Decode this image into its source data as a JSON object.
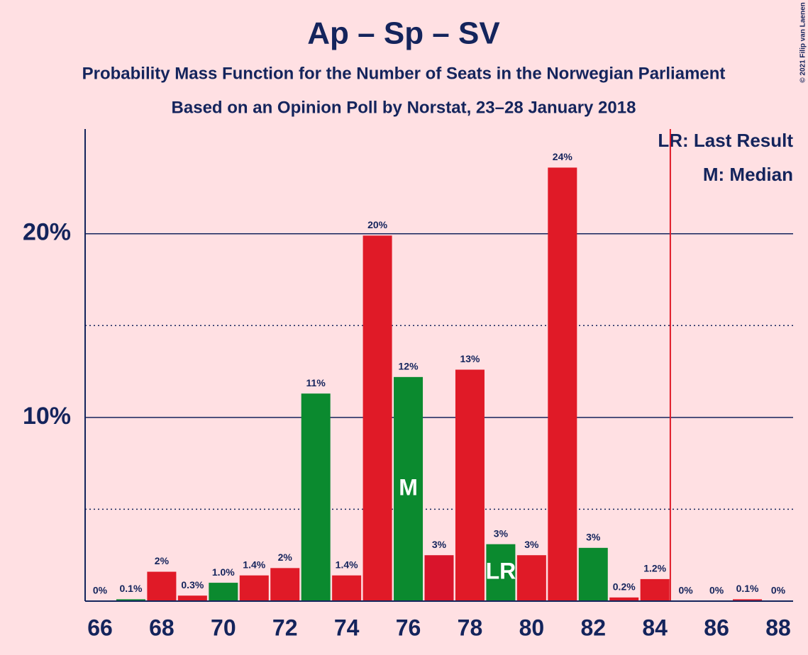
{
  "chart_data": {
    "type": "bar",
    "title": "Ap – Sp – SV",
    "subtitle": "Probability Mass Function for the Number of Seats in the Norwegian Parliament",
    "subtitle2": "Based on an Opinion Poll by Norstat, 23–28 January 2018",
    "credit": "© 2021 Filip van Laenen",
    "categories": [
      66,
      null,
      68,
      null,
      70,
      null,
      72,
      null,
      74,
      null,
      76,
      null,
      78,
      null,
      80,
      null,
      82,
      null,
      84,
      null,
      86,
      null,
      88
    ],
    "values": [
      0,
      0.1,
      1.6,
      0.3,
      1.0,
      1.4,
      1.8,
      11.3,
      1.4,
      19.9,
      12.2,
      2.5,
      12.6,
      3.1,
      2.5,
      23.6,
      2.9,
      0.2,
      1.2,
      0,
      0,
      0.1,
      0
    ],
    "value_labels": [
      "0%",
      "0.1%",
      "2%",
      "0.3%",
      "1.0%",
      "1.4%",
      "2%",
      "11%",
      "1.4%",
      "20%",
      "12%",
      "3%",
      "13%",
      "3%",
      "3%",
      "24%",
      "3%",
      "0.2%",
      "1.2%",
      "0%",
      "0%",
      "0.1%",
      "0%"
    ],
    "colors": [
      "#0b8a2f",
      "#0b8a2f",
      "#e01a27",
      "#e01a27",
      "#0b8a2f",
      "#e01a27",
      "#e01a27",
      "#0b8a2f",
      "#e01a27",
      "#e01a27",
      "#0b8a2f",
      "#d9142b",
      "#e01a27",
      "#0b8a2f",
      "#e01a27",
      "#e01a27",
      "#0b8a2f",
      "#e01a27",
      "#e01a27",
      "#e01a27",
      "#e01a27",
      "#e01a27",
      "#e01a27"
    ],
    "ylim": [
      0,
      25.7
    ],
    "yticks": [
      {
        "value": 10,
        "label": "10%"
      },
      {
        "value": 20,
        "label": "20%"
      }
    ],
    "minor_yticks": [
      5,
      15
    ],
    "majority_line": 85,
    "majority_color": "#e01a27",
    "median": {
      "index": 10,
      "label": "M"
    },
    "last_result": {
      "index": 13,
      "label": "LR"
    },
    "legend": [
      "LR: Last Result",
      "M: Median"
    ]
  }
}
